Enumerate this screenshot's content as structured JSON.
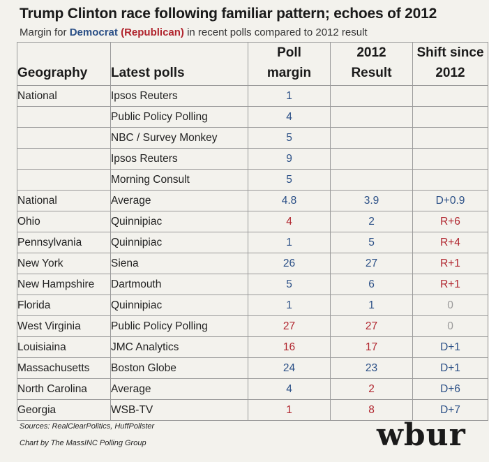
{
  "title": "Trump Clinton race following familiar pattern; echoes of 2012",
  "subtitle": {
    "prefix": "Margin for ",
    "dem": "Democrat",
    "rep": "(Republican)",
    "suffix": " in recent polls compared to 2012 result"
  },
  "colors": {
    "democrat": "#2a4f86",
    "republican": "#b0242d",
    "neutral": "#999999"
  },
  "chart_data": {
    "type": "table",
    "columns": {
      "geography": "Geography",
      "latest_polls": "Latest polls",
      "poll_margin": [
        "Poll",
        "margin"
      ],
      "result_2012": [
        "2012",
        "Result"
      ],
      "shift": [
        "Shift since",
        "2012"
      ]
    },
    "rows": [
      {
        "geo": "National",
        "poll": "Ipsos Reuters",
        "margin": "1",
        "margin_party": "D",
        "result": "",
        "result_party": "",
        "shift": "",
        "shift_party": ""
      },
      {
        "geo": "",
        "poll": "Public Policy Polling",
        "margin": "4",
        "margin_party": "D",
        "result": "",
        "result_party": "",
        "shift": "",
        "shift_party": ""
      },
      {
        "geo": "",
        "poll": "NBC / Survey Monkey",
        "margin": "5",
        "margin_party": "D",
        "result": "",
        "result_party": "",
        "shift": "",
        "shift_party": ""
      },
      {
        "geo": "",
        "poll": "Ipsos Reuters",
        "margin": "9",
        "margin_party": "D",
        "result": "",
        "result_party": "",
        "shift": "",
        "shift_party": ""
      },
      {
        "geo": "",
        "poll": "Morning Consult",
        "margin": "5",
        "margin_party": "D",
        "result": "",
        "result_party": "",
        "shift": "",
        "shift_party": ""
      },
      {
        "geo": "National",
        "poll": "Average",
        "margin": "4.8",
        "margin_party": "D",
        "result": "3.9",
        "result_party": "D",
        "shift": "D+0.9",
        "shift_party": "D"
      },
      {
        "geo": "Ohio",
        "poll": "Quinnipiac",
        "margin": "4",
        "margin_party": "R",
        "result": "2",
        "result_party": "D",
        "shift": "R+6",
        "shift_party": "R"
      },
      {
        "geo": "Pennsylvania",
        "poll": "Quinnipiac",
        "margin": "1",
        "margin_party": "D",
        "result": "5",
        "result_party": "D",
        "shift": "R+4",
        "shift_party": "R"
      },
      {
        "geo": "New York",
        "poll": "Siena",
        "margin": "26",
        "margin_party": "D",
        "result": "27",
        "result_party": "D",
        "shift": "R+1",
        "shift_party": "R"
      },
      {
        "geo": "New Hampshire",
        "poll": "Dartmouth",
        "margin": "5",
        "margin_party": "D",
        "result": "6",
        "result_party": "D",
        "shift": "R+1",
        "shift_party": "R"
      },
      {
        "geo": "Florida",
        "poll": "Quinnipiac",
        "margin": "1",
        "margin_party": "D",
        "result": "1",
        "result_party": "D",
        "shift": "0",
        "shift_party": "N"
      },
      {
        "geo": "West Virginia",
        "poll": "Public Policy Polling",
        "margin": "27",
        "margin_party": "R",
        "result": "27",
        "result_party": "R",
        "shift": "0",
        "shift_party": "N"
      },
      {
        "geo": "Louisiaina",
        "poll": "JMC Analytics",
        "margin": "16",
        "margin_party": "R",
        "result": "17",
        "result_party": "R",
        "shift": "D+1",
        "shift_party": "D"
      },
      {
        "geo": "Massachusetts",
        "poll": "Boston Globe",
        "margin": "24",
        "margin_party": "D",
        "result": "23",
        "result_party": "D",
        "shift": "D+1",
        "shift_party": "D"
      },
      {
        "geo": "North Carolina",
        "poll": "Average",
        "margin": "4",
        "margin_party": "D",
        "result": "2",
        "result_party": "R",
        "shift": "D+6",
        "shift_party": "D"
      },
      {
        "geo": "Georgia",
        "poll": "WSB-TV",
        "margin": "1",
        "margin_party": "R",
        "result": "8",
        "result_party": "R",
        "shift": "D+7",
        "shift_party": "D"
      }
    ]
  },
  "footer": {
    "sources": "Sources: RealClearPolitics, HuffPollster",
    "credit": "Chart by The MassINC Polling Group",
    "logo": "wbur"
  }
}
